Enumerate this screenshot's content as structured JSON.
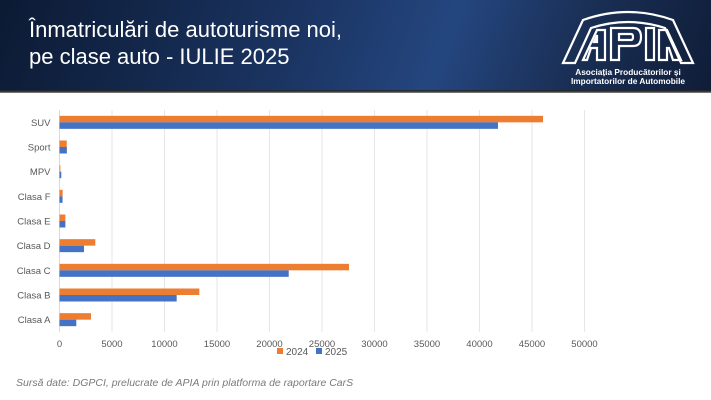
{
  "header": {
    "title_line1": "Înmatriculări de autoturisme noi,",
    "title_line2": "pe clase auto - IULIE 2025",
    "logo": {
      "name": "APIA",
      "line1": "Asociația Producătorilor și",
      "line2": "Importatorilor de Automobile"
    }
  },
  "colors": {
    "series_2024": "#ED7D31",
    "series_2025": "#4472C4",
    "gridline": "#e6e6e6",
    "tick_text": "#595959"
  },
  "chart_data": {
    "type": "bar",
    "orientation": "horizontal",
    "title": "",
    "xlabel": "",
    "ylabel": "",
    "categories": [
      "SUV",
      "Sport",
      "MPV",
      "Clasa F",
      "Clasa E",
      "Clasa D",
      "Clasa C",
      "Clasa B",
      "Clasa A"
    ],
    "series": [
      {
        "name": "2024",
        "values": [
          46050,
          690,
          80,
          300,
          560,
          3410,
          27570,
          13320,
          3000
        ]
      },
      {
        "name": "2025",
        "values": [
          41760,
          700,
          170,
          290,
          560,
          2330,
          21830,
          11160,
          1600
        ]
      }
    ],
    "xlim": [
      0,
      50000
    ],
    "x_ticks": [
      "0",
      "5000",
      "10000",
      "15000",
      "20000",
      "25000",
      "30000",
      "35000",
      "40000",
      "45000",
      "50000"
    ],
    "x_tick_values": [
      0,
      5000,
      10000,
      15000,
      20000,
      25000,
      30000,
      35000,
      40000,
      45000,
      50000
    ],
    "grid": true,
    "legend": {
      "position": "bottom-center",
      "entries": [
        "2024",
        "2025"
      ]
    }
  },
  "footer": {
    "source": "Sursă date: DGPCI, prelucrate de APIA prin platforma de raportare CarS"
  }
}
